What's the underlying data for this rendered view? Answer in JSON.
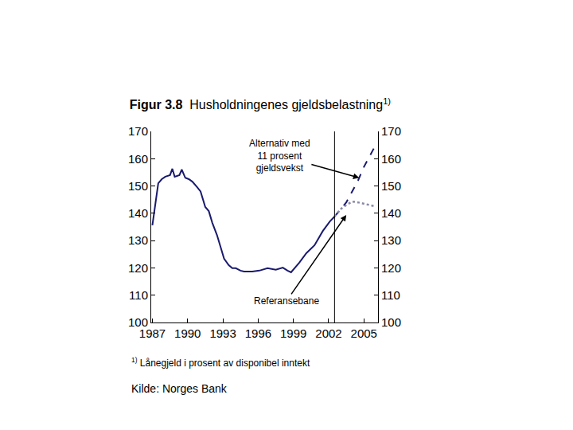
{
  "chart_data": {
    "type": "line",
    "title_label": "Figur 3.8",
    "title": "Husholdningenes gjeldsbelastning",
    "title_note": "1)",
    "footnote": {
      "mark": "1)",
      "text": "Lånegjeld i prosent av disponibel inntekt"
    },
    "source": "Kilde: Norges Bank",
    "xlim": [
      1986.9,
      2006.2
    ],
    "xticks": [
      1987,
      1990,
      1993,
      1996,
      1999,
      2002,
      2005
    ],
    "ylim": [
      100,
      170
    ],
    "yticks": [
      100,
      110,
      120,
      130,
      140,
      150,
      160,
      170
    ],
    "y2lim": [
      100,
      170
    ],
    "y2ticks": [
      100,
      110,
      120,
      130,
      140,
      150,
      160,
      170
    ],
    "grid": false,
    "vertical_line_x": 2002.5,
    "series": [
      {
        "color": "#1a1a6e",
        "line_style": "solid",
        "x": [
          1987.0,
          1987.5,
          1987.8,
          1988.1,
          1988.5,
          1988.7,
          1988.9,
          1989.3,
          1989.5,
          1989.8,
          1990.1,
          1990.4,
          1990.8,
          1991.1,
          1991.5,
          1991.8,
          1992.1,
          1992.5,
          1992.8,
          1993.1,
          1993.5,
          1993.8,
          1994.1,
          1994.5,
          1994.8,
          1995.5,
          1996.1,
          1996.8,
          1997.5,
          1998.1,
          1998.5,
          1998.8,
          1999.5,
          2000.1,
          2000.8,
          2001.5,
          2002.1,
          2002.5
        ],
        "values": [
          135.6,
          151.0,
          152.5,
          153.4,
          154.0,
          156.3,
          153.4,
          154.0,
          156.0,
          153.0,
          152.5,
          151.6,
          149.6,
          148.0,
          142.3,
          140.8,
          136.5,
          132.0,
          127.7,
          123.4,
          121.0,
          119.9,
          119.9,
          119.0,
          118.7,
          118.7,
          119.0,
          119.9,
          119.3,
          120.1,
          119.0,
          118.4,
          121.9,
          125.4,
          128.3,
          133.5,
          137.0,
          138.8
        ]
      },
      {
        "color": "#1a1a6e",
        "line_style": "dash",
        "x": [
          2002.5,
          2003.0,
          2003.5,
          2004.0,
          2004.5,
          2005.0,
          2005.5,
          2006.0
        ],
        "values": [
          138.8,
          141.5,
          144.0,
          148.0,
          152.0,
          157.0,
          161.0,
          165.0
        ]
      },
      {
        "color": "#8a8aa8",
        "line_style": "dot",
        "x": [
          2002.5,
          2003.0,
          2003.5,
          2004.0,
          2004.5,
          2005.0,
          2005.5,
          2006.0
        ],
        "values": [
          138.8,
          141.5,
          143.0,
          144.3,
          144.0,
          143.5,
          143.0,
          142.5
        ]
      }
    ],
    "annotations": [
      {
        "text": "Alternativ med\n11 prosent\ngjeldsvekst",
        "x": 2004.6,
        "y": 153
      },
      {
        "text": "Referansebane",
        "x": 2003.5,
        "y": 139.4
      }
    ]
  }
}
